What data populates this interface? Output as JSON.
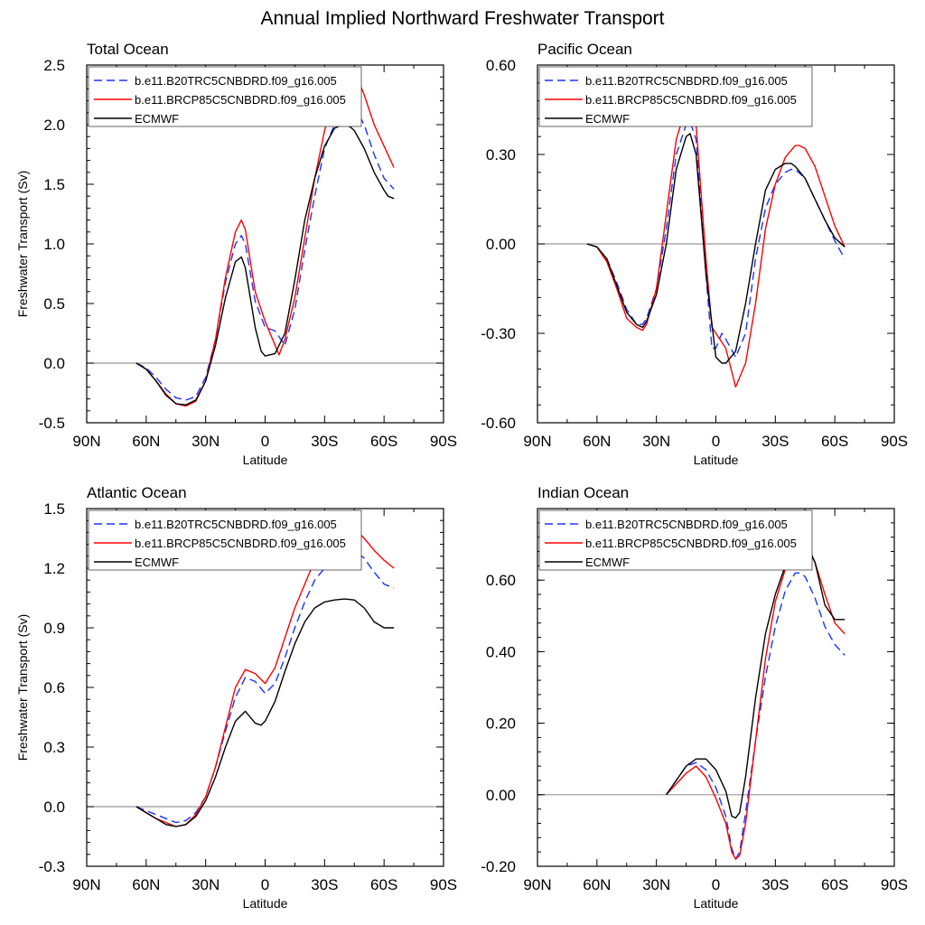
{
  "figure_title": "Annual Implied Northward Freshwater Transport",
  "legend_entries": [
    {
      "name": "b.e11.B20TRC5CNBDRD.f09_g16.005",
      "color": "#1a33ff",
      "dash": "dashed"
    },
    {
      "name": "b.e11.BRCP85C5CNBDRD.f09_g16.005",
      "color": "#ff0000",
      "dash": "solid"
    },
    {
      "name": "ECMWF",
      "color": "#000000",
      "dash": "solid"
    }
  ],
  "chart_data": [
    {
      "type": "line",
      "title": "Total Ocean",
      "xlabel": "Latitude",
      "ylabel": "Freshwater Transport (Sv)",
      "xlim": [
        90,
        -90
      ],
      "xticks": [
        "90N",
        "60N",
        "30N",
        "0",
        "30S",
        "60S",
        "90S"
      ],
      "ylim": [
        -0.5,
        2.5
      ],
      "yticks": [
        "-0.5",
        "0.0",
        "0.5",
        "1.0",
        "1.5",
        "2.0",
        "2.5"
      ],
      "series": [
        {
          "name": "b.e11.B20TRC5CNBDRD.f09_g16.005",
          "x": [
            65,
            60,
            55,
            50,
            45,
            40,
            35,
            30,
            25,
            20,
            15,
            12,
            10,
            5,
            0,
            -5,
            -10,
            -15,
            -20,
            -25,
            -30,
            -35,
            -40,
            -43,
            -45,
            -50,
            -55,
            -60,
            -65
          ],
          "y": [
            0.0,
            -0.04,
            -0.12,
            -0.22,
            -0.29,
            -0.31,
            -0.28,
            -0.12,
            0.2,
            0.68,
            1.0,
            1.07,
            1.0,
            0.52,
            0.3,
            0.27,
            0.15,
            0.45,
            0.95,
            1.4,
            1.8,
            2.0,
            2.12,
            2.16,
            2.15,
            2.0,
            1.75,
            1.55,
            1.46
          ]
        },
        {
          "name": "b.e11.BRCP85C5CNBDRD.f09_g16.005",
          "x": [
            65,
            60,
            55,
            50,
            45,
            40,
            35,
            30,
            25,
            20,
            15,
            12,
            10,
            5,
            0,
            -5,
            -7,
            -10,
            -15,
            -20,
            -25,
            -30,
            -35,
            -40,
            -43,
            -45,
            -50,
            -55,
            -60,
            -65
          ],
          "y": [
            0.0,
            -0.05,
            -0.15,
            -0.26,
            -0.34,
            -0.36,
            -0.32,
            -0.15,
            0.2,
            0.72,
            1.1,
            1.2,
            1.12,
            0.6,
            0.35,
            0.15,
            0.07,
            0.2,
            0.55,
            1.05,
            1.55,
            1.95,
            2.25,
            2.42,
            2.47,
            2.45,
            2.25,
            2.0,
            1.82,
            1.64
          ]
        },
        {
          "name": "ECMWF",
          "x": [
            65,
            60,
            55,
            50,
            45,
            40,
            35,
            30,
            25,
            20,
            15,
            12,
            10,
            5,
            2,
            0,
            -5,
            -10,
            -15,
            -20,
            -25,
            -30,
            -35,
            -40,
            -43,
            -45,
            -50,
            -55,
            -60,
            -62,
            -65
          ],
          "y": [
            0.0,
            -0.05,
            -0.15,
            -0.27,
            -0.34,
            -0.35,
            -0.31,
            -0.15,
            0.15,
            0.55,
            0.85,
            0.89,
            0.8,
            0.3,
            0.1,
            0.06,
            0.08,
            0.25,
            0.7,
            1.2,
            1.55,
            1.82,
            1.97,
            2.01,
            1.98,
            1.95,
            1.8,
            1.6,
            1.45,
            1.4,
            1.38
          ]
        }
      ]
    },
    {
      "type": "line",
      "title": "Pacific Ocean",
      "xlabel": "Latitude",
      "ylabel": "",
      "xlim": [
        90,
        -90
      ],
      "xticks": [
        "90N",
        "60N",
        "30N",
        "0",
        "30S",
        "60S",
        "90S"
      ],
      "ylim": [
        -0.6,
        0.6
      ],
      "yticks": [
        "-0.60",
        "-0.30",
        "0.00",
        "0.30",
        "0.60"
      ],
      "series": [
        {
          "name": "b.e11.B20TRC5CNBDRD.f09_g16.005",
          "x": [
            65,
            60,
            55,
            50,
            45,
            40,
            37,
            35,
            30,
            25,
            20,
            15,
            13,
            10,
            5,
            2,
            0,
            -3,
            -5,
            -10,
            -15,
            -20,
            -25,
            -30,
            -35,
            -38,
            -40,
            -45,
            -50,
            -55,
            -60,
            -65
          ],
          "y": [
            0.0,
            -0.01,
            -0.05,
            -0.13,
            -0.22,
            -0.27,
            -0.27,
            -0.25,
            -0.15,
            0.05,
            0.3,
            0.4,
            0.41,
            0.35,
            -0.1,
            -0.35,
            -0.35,
            -0.3,
            -0.32,
            -0.38,
            -0.3,
            -0.05,
            0.12,
            0.2,
            0.24,
            0.25,
            0.25,
            0.22,
            0.15,
            0.08,
            0.01,
            -0.05
          ]
        },
        {
          "name": "b.e11.BRCP85C5CNBDRD.f09_g16.005",
          "x": [
            65,
            60,
            55,
            50,
            45,
            40,
            37,
            35,
            30,
            25,
            20,
            15,
            13,
            10,
            5,
            2,
            0,
            -5,
            -10,
            -15,
            -20,
            -25,
            -30,
            -35,
            -40,
            -42,
            -45,
            -50,
            -55,
            -60,
            -65
          ],
          "y": [
            0.0,
            -0.01,
            -0.06,
            -0.15,
            -0.25,
            -0.28,
            -0.29,
            -0.27,
            -0.15,
            0.1,
            0.35,
            0.46,
            0.47,
            0.4,
            -0.05,
            -0.28,
            -0.3,
            -0.35,
            -0.48,
            -0.4,
            -0.2,
            0.05,
            0.2,
            0.29,
            0.33,
            0.33,
            0.32,
            0.26,
            0.16,
            0.06,
            -0.01
          ]
        },
        {
          "name": "ECMWF",
          "x": [
            65,
            60,
            55,
            50,
            45,
            40,
            37,
            35,
            30,
            25,
            20,
            15,
            13,
            10,
            5,
            0,
            -3,
            -5,
            -10,
            -15,
            -20,
            -25,
            -30,
            -35,
            -38,
            -40,
            -45,
            -50,
            -55,
            -60,
            -65
          ],
          "y": [
            0.0,
            -0.01,
            -0.05,
            -0.14,
            -0.23,
            -0.27,
            -0.28,
            -0.26,
            -0.17,
            0.0,
            0.25,
            0.36,
            0.37,
            0.3,
            -0.1,
            -0.38,
            -0.4,
            -0.4,
            -0.36,
            -0.2,
            0.0,
            0.18,
            0.25,
            0.27,
            0.27,
            0.26,
            0.22,
            0.15,
            0.08,
            0.02,
            -0.01
          ]
        }
      ]
    },
    {
      "type": "line",
      "title": "Atlantic Ocean",
      "xlabel": "Latitude",
      "ylabel": "Freshwater Transport (Sv)",
      "xlim": [
        90,
        -90
      ],
      "xticks": [
        "90N",
        "60N",
        "30N",
        "0",
        "30S",
        "60S",
        "90S"
      ],
      "ylim": [
        -0.3,
        1.5
      ],
      "yticks": [
        "-0.3",
        "0.0",
        "0.3",
        "0.6",
        "0.9",
        "1.2",
        "1.5"
      ],
      "series": [
        {
          "name": "b.e11.B20TRC5CNBDRD.f09_g16.005",
          "x": [
            65,
            60,
            55,
            50,
            45,
            40,
            35,
            30,
            25,
            20,
            15,
            10,
            5,
            0,
            -5,
            -10,
            -15,
            -20,
            -25,
            -30,
            -35,
            -40,
            -43,
            -45,
            -50,
            -55,
            -60,
            -65
          ],
          "y": [
            0.0,
            -0.02,
            -0.04,
            -0.06,
            -0.08,
            -0.07,
            -0.03,
            0.05,
            0.2,
            0.38,
            0.55,
            0.65,
            0.63,
            0.57,
            0.62,
            0.75,
            0.9,
            1.03,
            1.14,
            1.2,
            1.25,
            1.28,
            1.29,
            1.29,
            1.25,
            1.18,
            1.12,
            1.1
          ]
        },
        {
          "name": "b.e11.BRCP85C5CNBDRD.f09_g16.005",
          "x": [
            65,
            60,
            55,
            50,
            45,
            40,
            35,
            30,
            25,
            20,
            15,
            10,
            5,
            0,
            -5,
            -10,
            -15,
            -20,
            -25,
            -30,
            -35,
            -40,
            -43,
            -45,
            -50,
            -55,
            -60,
            -65
          ],
          "y": [
            0.0,
            -0.03,
            -0.06,
            -0.08,
            -0.1,
            -0.09,
            -0.04,
            0.05,
            0.2,
            0.4,
            0.6,
            0.69,
            0.67,
            0.62,
            0.7,
            0.85,
            1.0,
            1.12,
            1.24,
            1.32,
            1.37,
            1.4,
            1.41,
            1.4,
            1.35,
            1.29,
            1.24,
            1.2
          ]
        },
        {
          "name": "ECMWF",
          "x": [
            65,
            60,
            55,
            50,
            45,
            40,
            35,
            30,
            25,
            20,
            15,
            10,
            5,
            2,
            0,
            -5,
            -10,
            -15,
            -20,
            -25,
            -30,
            -35,
            -40,
            -45,
            -50,
            -55,
            -60,
            -65
          ],
          "y": [
            0.0,
            -0.03,
            -0.06,
            -0.09,
            -0.1,
            -0.09,
            -0.05,
            0.03,
            0.15,
            0.3,
            0.43,
            0.48,
            0.42,
            0.41,
            0.43,
            0.53,
            0.68,
            0.82,
            0.93,
            1.0,
            1.03,
            1.04,
            1.045,
            1.04,
            1.0,
            0.93,
            0.9,
            0.9
          ]
        }
      ]
    },
    {
      "type": "line",
      "title": "Indian Ocean",
      "xlabel": "Latitude",
      "ylabel": "",
      "xlim": [
        90,
        -90
      ],
      "xticks": [
        "90N",
        "60N",
        "30N",
        "0",
        "30S",
        "60S",
        "90S"
      ],
      "ylim": [
        -0.2,
        0.8
      ],
      "yticks": [
        "-0.20",
        "0.00",
        "0.20",
        "0.40",
        "0.60"
      ],
      "series": [
        {
          "name": "b.e11.B20TRC5CNBDRD.f09_g16.005",
          "x": [
            25,
            20,
            15,
            10,
            5,
            0,
            -5,
            -8,
            -10,
            -12,
            -15,
            -20,
            -25,
            -30,
            -35,
            -40,
            -42,
            -45,
            -50,
            -55,
            -60,
            -65
          ],
          "y": [
            0.0,
            0.04,
            0.08,
            0.09,
            0.07,
            0.02,
            -0.06,
            -0.15,
            -0.18,
            -0.16,
            -0.05,
            0.15,
            0.33,
            0.47,
            0.57,
            0.62,
            0.62,
            0.61,
            0.55,
            0.47,
            0.42,
            0.39
          ]
        },
        {
          "name": "b.e11.BRCP85C5CNBDRD.f09_g16.005",
          "x": [
            25,
            20,
            15,
            10,
            5,
            0,
            -5,
            -8,
            -10,
            -12,
            -15,
            -20,
            -25,
            -30,
            -35,
            -40,
            -42,
            -45,
            -50,
            -55,
            -60,
            -65
          ],
          "y": [
            0.0,
            0.03,
            0.06,
            0.08,
            0.05,
            -0.01,
            -0.08,
            -0.16,
            -0.18,
            -0.17,
            -0.08,
            0.15,
            0.38,
            0.54,
            0.63,
            0.69,
            0.7,
            0.7,
            0.65,
            0.56,
            0.48,
            0.45
          ]
        },
        {
          "name": "ECMWF",
          "x": [
            25,
            20,
            15,
            10,
            7,
            5,
            0,
            -5,
            -8,
            -10,
            -12,
            -15,
            -20,
            -25,
            -30,
            -35,
            -40,
            -42,
            -45,
            -50,
            -55,
            -60,
            -65
          ],
          "y": [
            0.0,
            0.04,
            0.08,
            0.1,
            0.1,
            0.1,
            0.07,
            0.01,
            -0.06,
            -0.065,
            -0.05,
            0.05,
            0.27,
            0.45,
            0.56,
            0.64,
            0.7,
            0.71,
            0.71,
            0.65,
            0.53,
            0.49,
            0.49
          ]
        }
      ]
    }
  ]
}
